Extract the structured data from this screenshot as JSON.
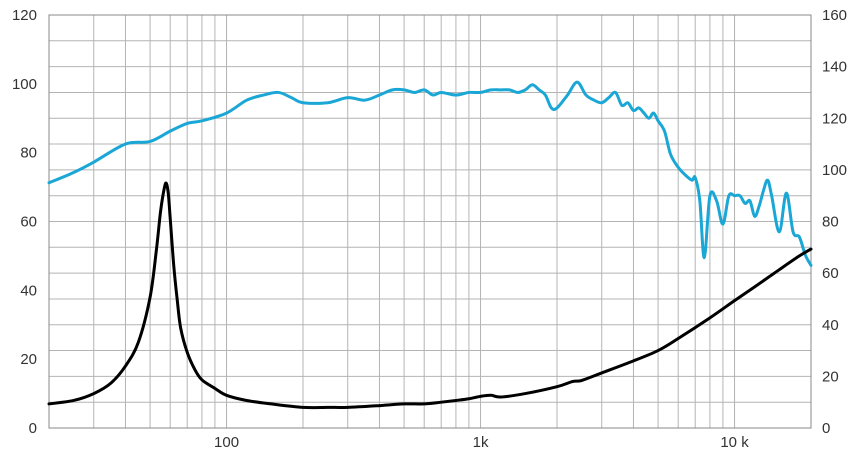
{
  "chart_data": {
    "type": "line",
    "x_scale": "log",
    "xlim": [
      20,
      20000
    ],
    "xticks": [
      {
        "value": 100,
        "label": "100"
      },
      {
        "value": 1000,
        "label": "1k"
      },
      {
        "value": 10000,
        "label": "10 k"
      }
    ],
    "y_left": {
      "range": [
        0,
        120
      ],
      "ticks": [
        "0",
        "20",
        "40",
        "60",
        "80",
        "100",
        "120"
      ]
    },
    "y_right": {
      "range": [
        0,
        160
      ],
      "ticks": [
        "0",
        "20",
        "40",
        "60",
        "80",
        "100",
        "120",
        "140",
        "160"
      ]
    },
    "grid": true,
    "series": [
      {
        "color": "#1aa7d6",
        "axis": "right",
        "x": [
          20,
          25,
          30,
          40,
          50,
          60,
          70,
          80,
          100,
          120,
          140,
          160,
          180,
          200,
          250,
          300,
          350,
          400,
          450,
          500,
          550,
          600,
          650,
          700,
          800,
          900,
          1000,
          1100,
          1200,
          1300,
          1400,
          1500,
          1600,
          1700,
          1800,
          1900,
          2000,
          2200,
          2400,
          2600,
          2800,
          3000,
          3200,
          3400,
          3600,
          3800,
          4000,
          4200,
          4400,
          4600,
          4800,
          5000,
          5300,
          5600,
          6000,
          6400,
          6800,
          7000,
          7300,
          7600,
          8000,
          8500,
          9000,
          9500,
          10000,
          10500,
          11000,
          11500,
          12000,
          12500,
          13000,
          13500,
          14000,
          15000,
          16000,
          17000,
          18000,
          19000,
          20000
        ],
        "y": [
          95,
          99,
          103,
          110,
          111,
          115,
          118,
          119,
          122,
          127,
          129,
          130,
          128,
          126,
          126,
          128,
          127,
          129,
          131,
          131,
          130,
          131,
          129,
          130,
          129,
          130,
          130,
          131,
          131,
          131,
          130,
          131,
          133,
          131,
          129,
          124,
          124,
          129,
          134,
          129,
          127,
          126,
          128,
          130,
          125,
          126,
          123,
          124,
          122,
          120,
          122,
          119,
          115,
          106,
          101,
          98,
          96,
          97,
          88,
          66,
          90,
          88,
          79,
          90,
          90,
          90,
          87,
          88,
          82,
          86,
          92,
          96,
          90,
          76,
          91,
          76,
          74,
          67,
          63
        ]
      },
      {
        "color": "#000000",
        "axis": "left",
        "x": [
          20,
          25,
          30,
          35,
          40,
          45,
          50,
          53,
          55,
          57,
          58,
          59,
          60,
          62,
          64,
          66,
          70,
          75,
          80,
          90,
          100,
          120,
          150,
          200,
          250,
          300,
          400,
          500,
          600,
          700,
          800,
          900,
          1000,
          1100,
          1200,
          1500,
          2000,
          2300,
          2500,
          3000,
          4000,
          5000,
          6000,
          8000,
          10000,
          12000,
          15000,
          18000,
          20000
        ],
        "y": [
          7,
          8,
          10,
          13,
          18,
          25,
          38,
          52,
          63,
          70,
          71,
          68,
          61,
          47,
          37,
          29,
          22,
          17,
          14,
          11.5,
          9.5,
          8,
          7,
          6,
          6,
          6,
          6.5,
          7,
          7,
          7.5,
          8,
          8.5,
          9.2,
          9.5,
          9,
          10,
          12,
          13.5,
          13.8,
          16,
          19.5,
          22.5,
          26,
          32,
          37,
          41,
          46,
          50,
          52
        ]
      }
    ]
  }
}
